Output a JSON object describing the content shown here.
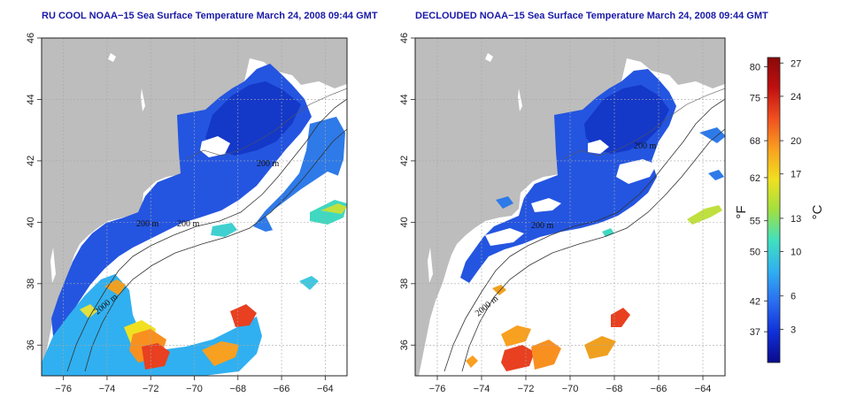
{
  "panels": [
    {
      "id": "left",
      "title": "RU COOL NOAA−15 Sea Surface Temperature March 24, 2008 09:44 GMT",
      "isobath_labels": [
        "200 m",
        "2000 m",
        "200 m",
        "200 m"
      ]
    },
    {
      "id": "right",
      "title": "DECLOUDED NOAA−15 Sea Surface Temperature March 24, 2008 09:44 GMT",
      "isobath_labels": [
        "200 m",
        "2000 m",
        "200 m"
      ]
    }
  ],
  "axes": {
    "x_ticks": [
      "−76",
      "−74",
      "−72",
      "−70",
      "−68",
      "−66",
      "−64"
    ],
    "x_values": [
      -76,
      -74,
      -72,
      -70,
      -68,
      -66,
      -64
    ],
    "y_ticks": [
      "36",
      "38",
      "40",
      "42",
      "44",
      "46"
    ],
    "y_values": [
      36,
      38,
      40,
      42,
      44,
      46
    ],
    "x_range": [
      -77,
      -63
    ],
    "y_range": [
      35,
      46
    ]
  },
  "colorbar": {
    "fahrenheit_label": "°F",
    "celsius_label": "°C",
    "fahrenheit_ticks": [
      "80",
      "75",
      "68",
      "62",
      "55",
      "50",
      "42",
      "37"
    ],
    "celsius_ticks": [
      "27",
      "24",
      "20",
      "17",
      "13",
      "10",
      "6",
      "3"
    ],
    "celsius_range": [
      0,
      27.5
    ],
    "celsius_tick_values": [
      27,
      24,
      20,
      17,
      13,
      10,
      6,
      3
    ],
    "fahrenheit_tick_values": [
      80,
      75,
      68,
      62,
      55,
      50,
      42,
      37
    ],
    "colors": [
      "#0a0a8c",
      "#1030d8",
      "#2a6ef0",
      "#30b0f0",
      "#40e0c0",
      "#a0e040",
      "#f0e020",
      "#f8a020",
      "#f05020",
      "#c01010",
      "#8a0808"
    ]
  },
  "colors": {
    "land": "#bdbdbd",
    "cloud": "#ffffff",
    "grid": "#a8a8a8",
    "title": "#1a1aa8"
  }
}
